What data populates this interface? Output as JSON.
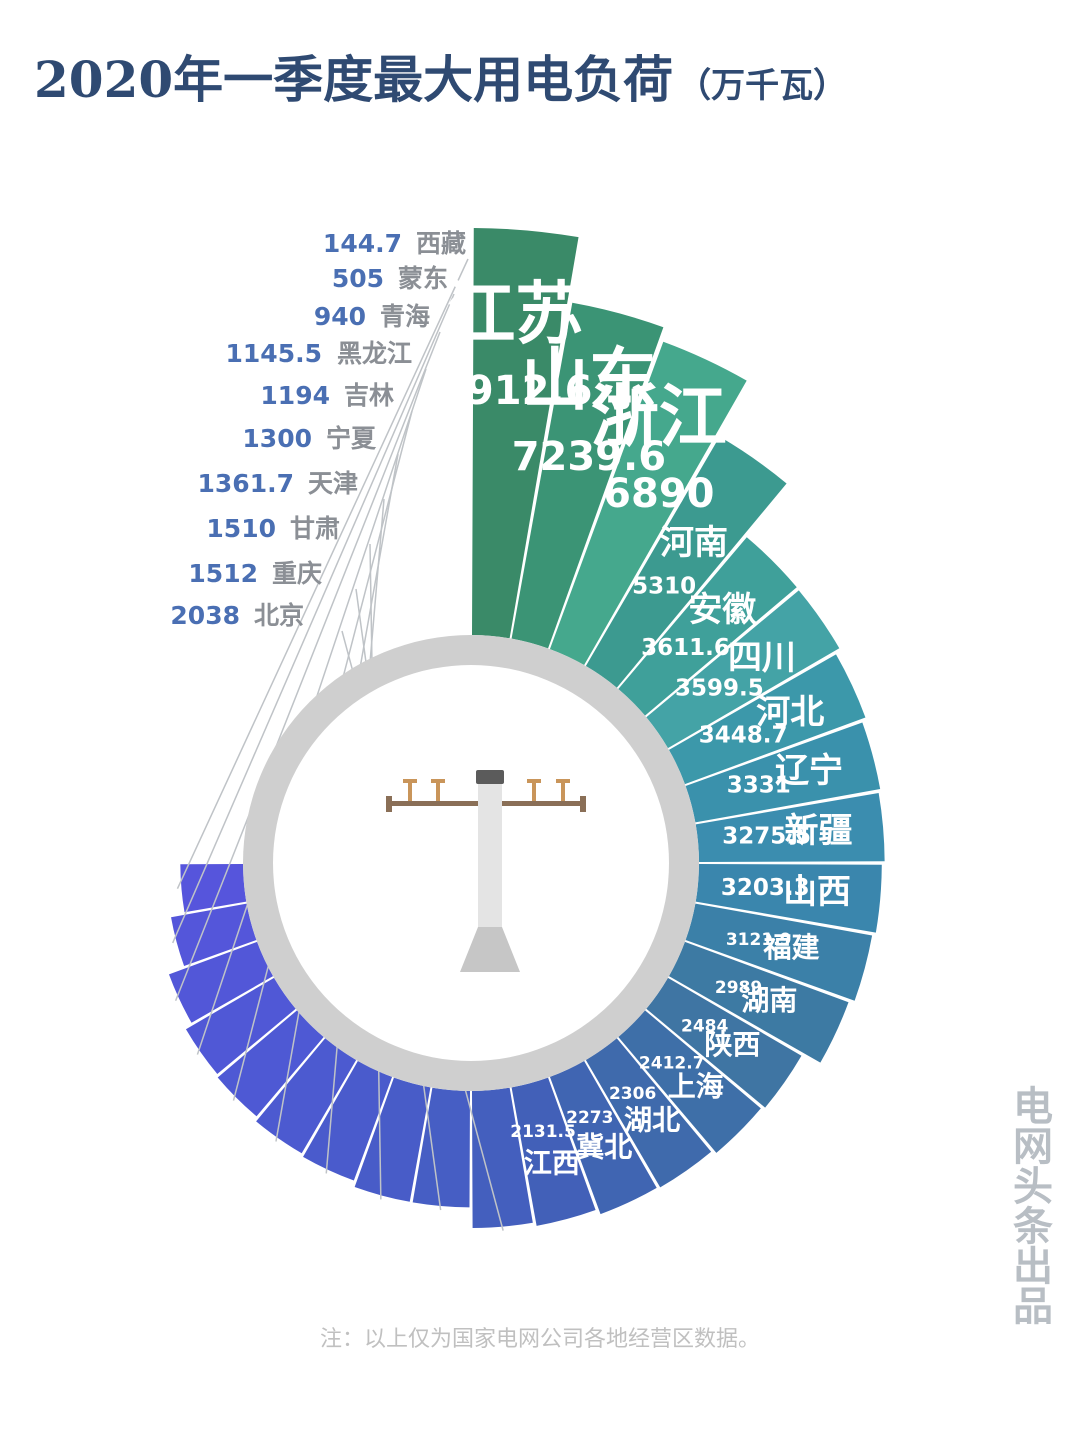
{
  "title": "2020年一季度最大用电负荷",
  "unit": "（万千瓦）",
  "watermark": "电网头条出品",
  "note": "注：以上仅为国家电网公司各地经营区数据。",
  "chart_data": {
    "type": "pie",
    "title": "2020年一季度最大用电负荷",
    "unit": "万千瓦",
    "slices": [
      {
        "name": "江苏",
        "value": 8912.6,
        "label": "8912.6",
        "color": "#3a8a68"
      },
      {
        "name": "山东",
        "value": 7239.6,
        "label": "7239.6",
        "color": "#3b9475"
      },
      {
        "name": "浙江",
        "value": 6890,
        "label": "6890",
        "color": "#45a88d"
      },
      {
        "name": "河南",
        "value": 5310,
        "label": "5310",
        "color": "#3c9a90"
      },
      {
        "name": "安徽",
        "value": 3611.6,
        "label": "3611.6",
        "color": "#3fa09a"
      },
      {
        "name": "四川",
        "value": 3599.5,
        "label": "3599.5",
        "color": "#44a3a6"
      },
      {
        "name": "河北",
        "value": 3448.7,
        "label": "3448.7",
        "color": "#3c98aa"
      },
      {
        "name": "辽宁",
        "value": 3331,
        "label": "3331",
        "color": "#3a91ac"
      },
      {
        "name": "新疆",
        "value": 3275.5,
        "label": "3275.5",
        "color": "#3b8daf"
      },
      {
        "name": "山西",
        "value": 3203.3,
        "label": "3203.3",
        "color": "#3a86ad"
      },
      {
        "name": "福建",
        "value": 3121.9,
        "label": "3121.9",
        "color": "#3b80a8"
      },
      {
        "name": "湖南",
        "value": 2989,
        "label": "2989",
        "color": "#3d7aa3"
      },
      {
        "name": "陕西",
        "value": 2484,
        "label": "2484",
        "color": "#3f75a3"
      },
      {
        "name": "上海",
        "value": 2412.7,
        "label": "2412.7",
        "color": "#3e6fa8"
      },
      {
        "name": "湖北",
        "value": 2306,
        "label": "2306",
        "color": "#3f6aac"
      },
      {
        "name": "冀北",
        "value": 2273,
        "label": "2273",
        "color": "#4065b2"
      },
      {
        "name": "江西",
        "value": 2131.5,
        "label": "2131.5",
        "color": "#4260b8"
      },
      {
        "name": "北京",
        "value": 2038,
        "label": "2038",
        "color": "#445fbe"
      },
      {
        "name": "重庆",
        "value": 1512,
        "label": "1512",
        "color": "#465ec4"
      },
      {
        "name": "甘肃",
        "value": 1510,
        "label": "1510",
        "color": "#485cc8"
      },
      {
        "name": "天津",
        "value": 1361.7,
        "label": "1361.7",
        "color": "#4a5bcc"
      },
      {
        "name": "宁夏",
        "value": 1300,
        "label": "1300",
        "color": "#4c5ad0"
      },
      {
        "name": "吉林",
        "value": 1194,
        "label": "1194",
        "color": "#4e59d4"
      },
      {
        "name": "黑龙江",
        "value": 1145.5,
        "label": "1145.5",
        "color": "#5058d6"
      },
      {
        "name": "青海",
        "value": 940,
        "label": "940",
        "color": "#5257d8"
      },
      {
        "name": "蒙东",
        "value": 505,
        "label": "505",
        "color": "#5456da"
      },
      {
        "name": "西藏",
        "value": 144.7,
        "label": "144.7",
        "color": "#5655dc"
      }
    ]
  }
}
